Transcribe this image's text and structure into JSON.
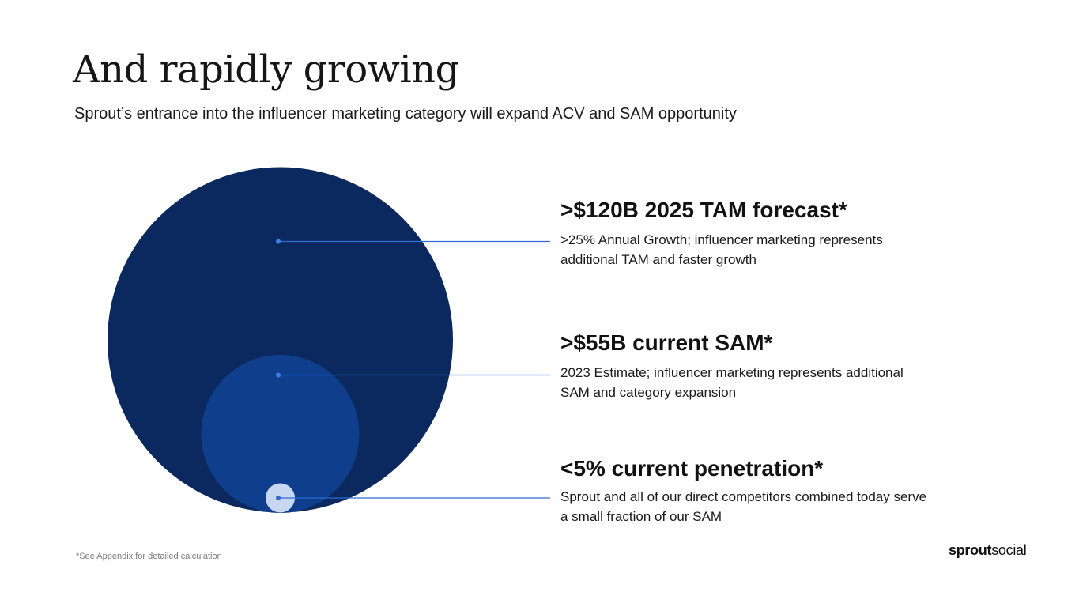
{
  "title": "And rapidly growing",
  "subtitle": "Sprout’s entrance into the influencer marketing category will expand ACV and SAM opportunity",
  "colors": {
    "tam_circle": "#0b295e",
    "sam_circle": "#0e3e8c",
    "penetration_circle": "#c7d6f1",
    "leader_line": "#2f6bd3",
    "leader_dot": "#3f7ee8"
  },
  "stats": {
    "tam": {
      "heading": ">$120B 2025 TAM forecast*",
      "description": ">25% Annual Growth; influencer marketing represents additional TAM and faster growth"
    },
    "sam": {
      "heading": ">$55B current SAM*",
      "description": "2023 Estimate; influencer marketing represents additional SAM and category expansion"
    },
    "penetration": {
      "heading": "<5% current penetration*",
      "description": "Sprout and all of our direct competitors combined today serve a small fraction of our SAM"
    }
  },
  "footnote": "*See Appendix for detailed calculation",
  "brand": {
    "part1": "sprout",
    "part2": "social"
  }
}
